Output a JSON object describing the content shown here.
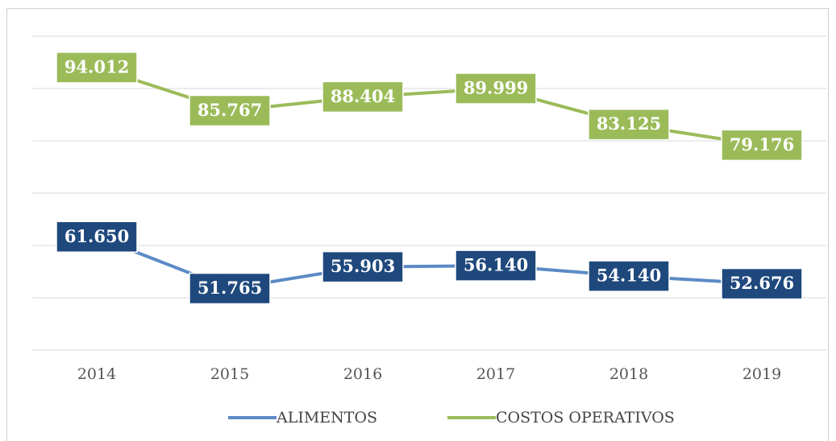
{
  "chart_data": {
    "type": "line",
    "categories": [
      "2014",
      "2015",
      "2016",
      "2017",
      "2018",
      "2019"
    ],
    "series": [
      {
        "name": "ALIMENTOS",
        "color": "#5b8ac5",
        "label_color": "#1f497d",
        "values": [
          61650,
          51765,
          55903,
          56140,
          54140,
          52676
        ],
        "value_labels": [
          "61.650",
          "51.765",
          "55.903",
          "56.140",
          "54.140",
          "52.676"
        ]
      },
      {
        "name": "COSTOS OPERATIVOS",
        "color": "#9bbb59",
        "label_color": "#9bbb59",
        "values": [
          94012,
          85767,
          88404,
          89999,
          83125,
          79176
        ],
        "value_labels": [
          "94.012",
          "85.767",
          "88.404",
          "89.999",
          "83.125",
          "79.176"
        ]
      }
    ],
    "ylim": [
      40000,
      100000
    ],
    "yticks": [
      40000,
      50000,
      60000,
      70000,
      80000,
      90000,
      100000
    ],
    "grid": true,
    "legend": "bottom"
  }
}
